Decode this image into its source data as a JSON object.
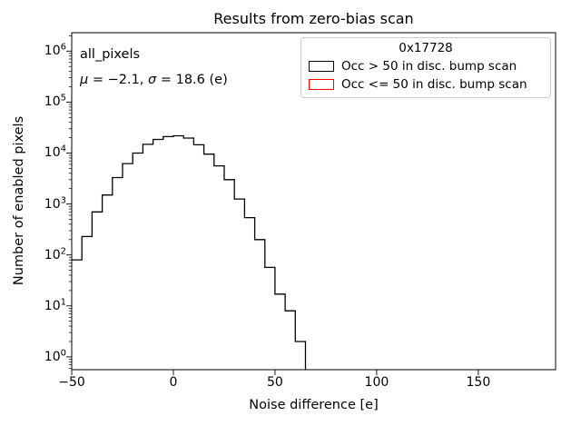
{
  "figure": {
    "title": "Results from zero-bias scan",
    "background": "#ffffff"
  },
  "axes": {
    "xlabel": "Noise difference [e]",
    "ylabel": "Number of enabled pixels",
    "x_tick_labels": [
      "−50",
      "0",
      "50",
      "100",
      "150"
    ],
    "x_tick_values": [
      -50,
      0,
      50,
      100,
      150
    ],
    "y_tick_exponents": [
      0,
      1,
      2,
      3,
      4,
      5,
      6
    ],
    "xlim": [
      -50,
      188
    ],
    "ylim": [
      0.56,
      2300000
    ],
    "yscale": "log"
  },
  "annotation": {
    "dataset": "all_pixels",
    "mu_symbol": "μ",
    "mu_rest": " = −2.1, ",
    "sigma_symbol": "σ",
    "sigma_rest": " = 18.6 (e)"
  },
  "legend": {
    "title": "0x17728",
    "entries": [
      {
        "label": "Occ > 50 in disc. bump scan",
        "color": "#000000"
      },
      {
        "label": "Occ <= 50 in disc. bump scan",
        "color": "#ff0000"
      }
    ]
  },
  "chart_data": {
    "type": "bar",
    "histtype": "step",
    "title": "Results from zero-bias scan",
    "xlabel": "Noise difference [e]",
    "ylabel": "Number of enabled pixels",
    "legend_title": "0x17728",
    "legend_position": "upper right",
    "grid": false,
    "ylog": true,
    "xlim": [
      -50,
      188
    ],
    "ylim": [
      0.56,
      2300000
    ],
    "x_tick_values": [
      -50,
      0,
      50,
      100,
      150
    ],
    "y_tick_values": [
      1,
      10,
      100,
      1000,
      10000,
      100000,
      1000000
    ],
    "bin_width": 5,
    "bin_edges": [
      -50,
      -45,
      -40,
      -35,
      -30,
      -25,
      -20,
      -15,
      -10,
      -5,
      0,
      5,
      10,
      15,
      20,
      25,
      30,
      35,
      40,
      45,
      50,
      55,
      60,
      65
    ],
    "series": [
      {
        "name": "Occ > 50 in disc. bump scan",
        "color": "#000000",
        "counts": [
          80,
          230,
          700,
          1500,
          3300,
          6200,
          10000,
          14800,
          18500,
          21000,
          21800,
          19700,
          14500,
          9500,
          5600,
          3000,
          1250,
          540,
          200,
          57,
          17,
          8,
          2
        ]
      },
      {
        "name": "Occ <= 50 in disc. bump scan",
        "color": "#ff0000",
        "counts": []
      }
    ],
    "stats": {
      "dataset": "all_pixels",
      "mu": -2.1,
      "sigma": 18.6,
      "unit": "e"
    }
  }
}
